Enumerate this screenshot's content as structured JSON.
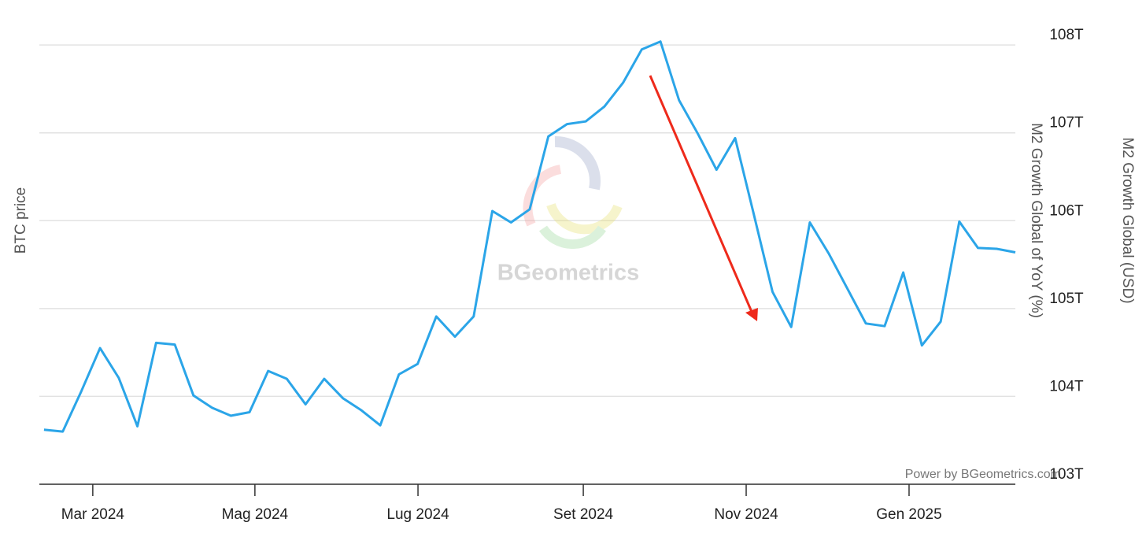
{
  "chart_data": {
    "type": "line",
    "y_axis_left_title": "BTC price",
    "y_axis_right_title": "M2 Growth Global of YoY (%)",
    "y_axis_far_right_title": "M2 Growth Global (USD)",
    "watermark": "BGeometrics",
    "credit": "Power by BGeometrics.com",
    "series": [
      {
        "name": "M2 Growth Global (USD)",
        "color": "#2ba5e8",
        "values": [
          103.62,
          103.6,
          104.06,
          104.55,
          104.21,
          103.66,
          104.61,
          104.59,
          104.01,
          103.87,
          103.78,
          103.82,
          104.29,
          104.2,
          103.91,
          104.2,
          103.98,
          103.84,
          103.67,
          104.25,
          104.37,
          104.91,
          104.68,
          104.91,
          106.11,
          105.98,
          106.13,
          106.96,
          107.1,
          107.13,
          107.3,
          107.57,
          107.95,
          108.04,
          107.37,
          106.99,
          106.58,
          106.94,
          106.07,
          105.19,
          104.79,
          105.98,
          105.63,
          105.23,
          104.83,
          104.8,
          105.41,
          104.58,
          104.85,
          105.99,
          105.69,
          105.68,
          105.64
        ]
      }
    ],
    "xlim": [
      -0.25,
      52
    ],
    "xticks": [
      {
        "value": 2.61,
        "label": "Mar 2024"
      },
      {
        "value": 11.29,
        "label": "Mag 2024"
      },
      {
        "value": 20.02,
        "label": "Lug 2024"
      },
      {
        "value": 28.87,
        "label": "Set 2024"
      },
      {
        "value": 37.59,
        "label": "Nov 2024"
      },
      {
        "value": 46.31,
        "label": "Gen 2025"
      }
    ],
    "ylim": [
      103,
      108.1
    ],
    "yticks": [
      {
        "value": 103,
        "label": "103T"
      },
      {
        "value": 104,
        "label": "104T"
      },
      {
        "value": 105,
        "label": "105T"
      },
      {
        "value": 106,
        "label": "106T"
      },
      {
        "value": 107,
        "label": "107T"
      },
      {
        "value": 108,
        "label": "108T"
      }
    ],
    "grid": true
  }
}
